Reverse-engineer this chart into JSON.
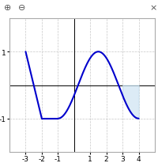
{
  "xlim": [
    -4,
    5
  ],
  "ylim": [
    -2,
    2
  ],
  "xticks": [
    -3,
    -2,
    -1,
    1,
    2,
    3,
    4
  ],
  "yticks": [
    -1,
    1
  ],
  "line_color": "#0000cc",
  "shade_color": "#c5dff0",
  "shade_alpha": 0.6,
  "bg_color": "#ffffff",
  "grid_color": "#c8c8c8",
  "toolbar_color": "#eeeeee",
  "border_color": "#aaaaaa",
  "figsize": [
    2.0,
    2.07
  ],
  "dpi": 100,
  "linewidth": 1.5,
  "tick_fontsize": 6.5
}
